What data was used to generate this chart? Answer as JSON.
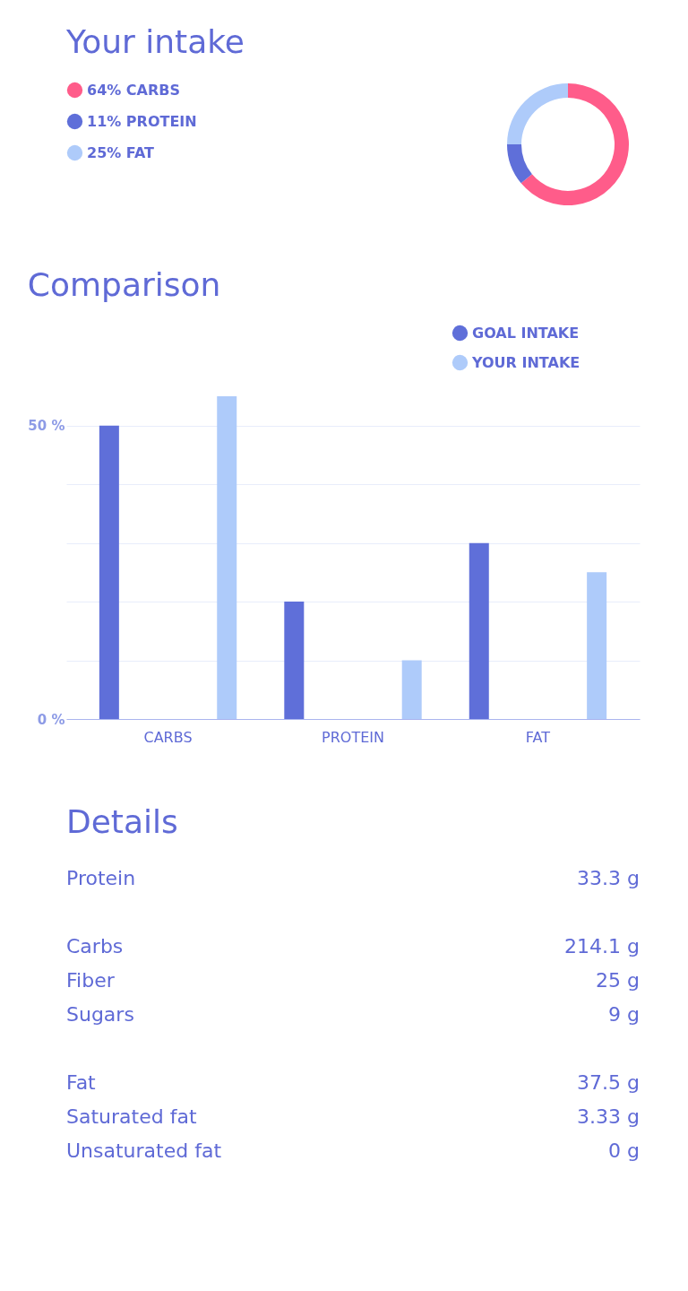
{
  "chart_data": [
    {
      "type": "donut",
      "title": "Your intake",
      "categories": [
        "64% CARBS",
        "11% PROTEIN",
        "25% FAT"
      ],
      "values": [
        64,
        11,
        25
      ],
      "colors": [
        "#ff5c8a",
        "#5f6fd9",
        "#aecbfa"
      ],
      "legend": "top left"
    },
    {
      "type": "bar",
      "title": "Comparison",
      "categories": [
        "CARBS",
        "PROTEIN",
        "FAT"
      ],
      "series": [
        {
          "name": "GOAL INTAKE",
          "color": "#5f6fd9",
          "values": [
            50,
            20,
            30
          ]
        },
        {
          "name": "YOUR INTAKE",
          "color": "#aecbfa",
          "values": [
            55,
            10,
            25
          ]
        }
      ],
      "ylim": [
        0,
        55
      ],
      "yticks": [
        {
          "value": 0,
          "label": "0 %"
        },
        {
          "value": 10,
          "label": null
        },
        {
          "value": 20,
          "label": null
        },
        {
          "value": 30,
          "label": null
        },
        {
          "value": 40,
          "label": null
        },
        {
          "value": 50,
          "label": "50 %"
        }
      ],
      "grid": "y",
      "legend": "top right"
    },
    {
      "type": "other",
      "title": "Details",
      "categories": [
        "Protein",
        null,
        "Carbs",
        "Fiber",
        "Sugars",
        null,
        "Fat",
        "Saturated fat",
        "Unsaturated fat"
      ],
      "values": [
        33.3,
        null,
        214.1,
        25,
        9,
        null,
        37.5,
        3.33,
        0
      ],
      "value_labels": [
        "33.3 g",
        null,
        "214.1 g",
        "25 g",
        "9 g",
        null,
        "37.5 g",
        "3.33 g",
        "0 g"
      ]
    }
  ]
}
